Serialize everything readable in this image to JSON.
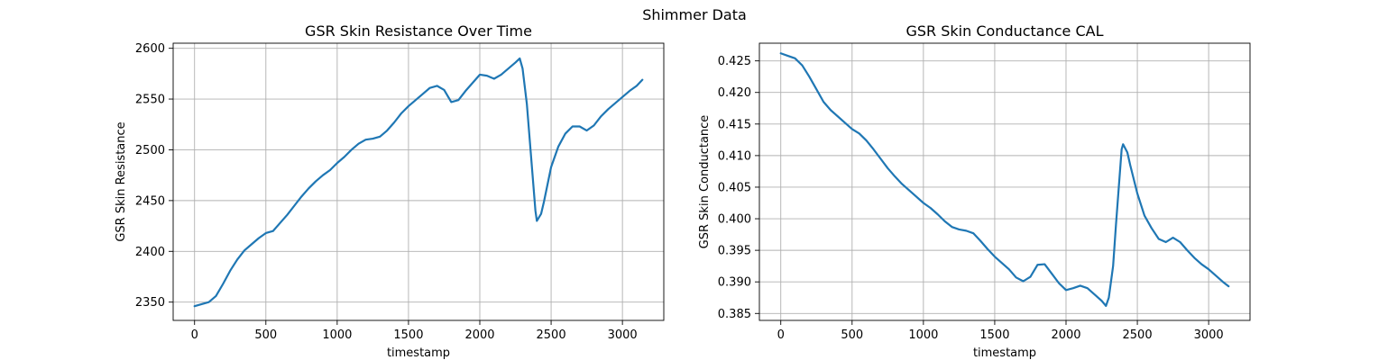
{
  "suptitle": "Shimmer Data",
  "colors": {
    "series": "#1f77b4",
    "grid": "#b0b0b0",
    "spine": "#000000"
  },
  "chart_data": [
    {
      "type": "line",
      "title": "GSR Skin Resistance Over Time",
      "xlabel": "timestamp",
      "ylabel": "GSR Skin Resistance",
      "xlim": [
        -150,
        3290
      ],
      "ylim": [
        2332,
        2605
      ],
      "xticks": [
        0,
        500,
        1000,
        1500,
        2000,
        2500,
        3000
      ],
      "yticks": [
        2350,
        2400,
        2450,
        2500,
        2550,
        2600
      ],
      "grid": true,
      "series": [
        {
          "x": [
            0,
            50,
            100,
            150,
            200,
            250,
            300,
            350,
            400,
            450,
            500,
            550,
            600,
            650,
            700,
            750,
            800,
            850,
            900,
            950,
            1000,
            1050,
            1100,
            1150,
            1200,
            1250,
            1300,
            1350,
            1400,
            1450,
            1500,
            1550,
            1600,
            1650,
            1700,
            1750,
            1800,
            1850,
            1900,
            1950,
            2000,
            2050,
            2100,
            2150,
            2200,
            2250,
            2280,
            2300,
            2330,
            2350,
            2370,
            2390,
            2400,
            2430,
            2450,
            2500,
            2550,
            2600,
            2650,
            2700,
            2750,
            2800,
            2850,
            2900,
            2950,
            3000,
            3050,
            3100,
            3140
          ],
          "y": [
            2346,
            2348,
            2350,
            2356,
            2368,
            2381,
            2392,
            2401,
            2407,
            2413,
            2418,
            2420,
            2428,
            2436,
            2445,
            2454,
            2462,
            2469,
            2475,
            2480,
            2487,
            2493,
            2500,
            2506,
            2510,
            2511,
            2513,
            2519,
            2527,
            2536,
            2543,
            2549,
            2555,
            2561,
            2563,
            2559,
            2547,
            2549,
            2558,
            2566,
            2574,
            2573,
            2570,
            2574,
            2580,
            2586,
            2590,
            2580,
            2545,
            2510,
            2475,
            2440,
            2430,
            2437,
            2449,
            2483,
            2503,
            2516,
            2523,
            2523,
            2519,
            2524,
            2533,
            2540,
            2546,
            2552,
            2558,
            2563,
            2569
          ]
        }
      ]
    },
    {
      "type": "line",
      "title": "GSR Skin Conductance CAL",
      "xlabel": "timestamp",
      "ylabel": "GSR Skin Conductance",
      "xlim": [
        -150,
        3290
      ],
      "ylim": [
        0.3839,
        0.4278
      ],
      "xticks": [
        0,
        500,
        1000,
        1500,
        2000,
        2500,
        3000
      ],
      "yticks": [
        0.385,
        0.39,
        0.395,
        0.4,
        0.405,
        0.41,
        0.415,
        0.42,
        0.425
      ],
      "grid": true,
      "series": [
        {
          "x": [
            0,
            50,
            100,
            150,
            200,
            250,
            300,
            350,
            400,
            450,
            500,
            550,
            600,
            650,
            700,
            750,
            800,
            850,
            900,
            950,
            1000,
            1050,
            1100,
            1150,
            1200,
            1250,
            1300,
            1350,
            1400,
            1450,
            1500,
            1550,
            1600,
            1650,
            1700,
            1750,
            1800,
            1850,
            1900,
            1950,
            2000,
            2050,
            2100,
            2150,
            2200,
            2250,
            2280,
            2300,
            2330,
            2350,
            2370,
            2390,
            2400,
            2430,
            2450,
            2500,
            2550,
            2600,
            2650,
            2700,
            2750,
            2800,
            2850,
            2900,
            2950,
            3000,
            3050,
            3100,
            3140
          ],
          "y": [
            0.4262,
            0.4258,
            0.4254,
            0.4243,
            0.4225,
            0.4205,
            0.4185,
            0.4172,
            0.4162,
            0.4152,
            0.4142,
            0.4135,
            0.4124,
            0.411,
            0.4095,
            0.408,
            0.4067,
            0.4055,
            0.4045,
            0.4035,
            0.4025,
            0.4017,
            0.4007,
            0.3996,
            0.3987,
            0.3983,
            0.3981,
            0.3977,
            0.3965,
            0.3952,
            0.394,
            0.393,
            0.392,
            0.3907,
            0.3901,
            0.3908,
            0.3927,
            0.3928,
            0.3913,
            0.3898,
            0.3887,
            0.389,
            0.3894,
            0.389,
            0.388,
            0.387,
            0.3862,
            0.3875,
            0.3925,
            0.399,
            0.405,
            0.411,
            0.4118,
            0.4105,
            0.4085,
            0.404,
            0.4005,
            0.3985,
            0.3968,
            0.3963,
            0.397,
            0.3963,
            0.395,
            0.3938,
            0.3928,
            0.392,
            0.391,
            0.39,
            0.3893
          ]
        }
      ]
    }
  ]
}
